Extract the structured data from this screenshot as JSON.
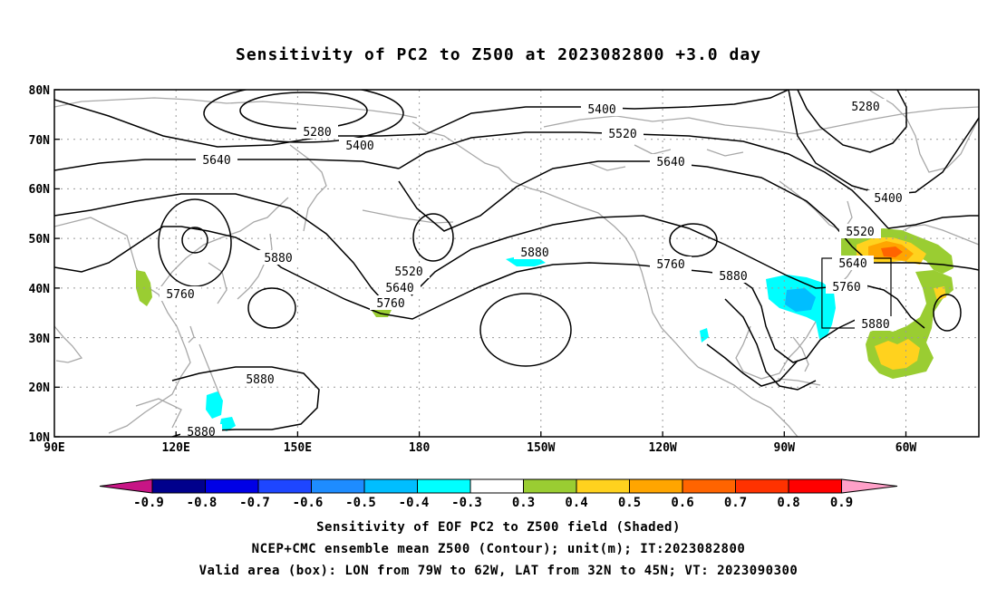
{
  "title": "Sensitivity of PC2 to Z500 at 2023082800 +3.0 day",
  "lat_ticks": [
    "80N",
    "70N",
    "60N",
    "50N",
    "40N",
    "30N",
    "20N",
    "10N"
  ],
  "lon_ticks": [
    "90E",
    "120E",
    "150E",
    "180",
    "150W",
    "120W",
    "90W",
    "60W"
  ],
  "contour_labels": {
    "c5280a": "5280",
    "c5400a": "5400",
    "c5640a": "5640",
    "c5880a": "5880",
    "c5760a": "5760",
    "c5880b": "5880",
    "c5880c": "5880",
    "c5520a": "5520",
    "c5640b": "5640",
    "c5760b": "5760",
    "c5880d": "5880",
    "c5400b": "5400",
    "c5520b": "5520",
    "c5640c": "5640",
    "c5760c": "5760",
    "c5880e": "5880",
    "c5280b": "5280",
    "c5400c": "5400",
    "c5520c": "5520",
    "c5640d": "5640",
    "c5760d": "5760",
    "c5880f": "5880"
  },
  "colorbar": {
    "labels": [
      "-0.9",
      "-0.8",
      "-0.7",
      "-0.6",
      "-0.5",
      "-0.4",
      "-0.3",
      "0.3",
      "0.4",
      "0.5",
      "0.6",
      "0.7",
      "0.8",
      "0.9"
    ],
    "colors": [
      "#00008c",
      "#0000e6",
      "#1e46ff",
      "#1e8cff",
      "#00beff",
      "#00ffff",
      "#ffffff",
      "#9acd32",
      "#ffd21e",
      "#ffa500",
      "#ff6400",
      "#ff3200",
      "#ff0000"
    ],
    "low_end_color": "#c71585",
    "high_end_color": "#ffa0c8"
  },
  "captions": {
    "line1": "Sensitivity of EOF PC2 to Z500 field (Shaded)",
    "line2": "NCEP+CMC ensemble mean Z500 (Contour); unit(m); IT:2023082800",
    "line3": "Valid area (box): LON from 79W to 62W, LAT from 32N to 45N; VT: 2023090300"
  }
}
